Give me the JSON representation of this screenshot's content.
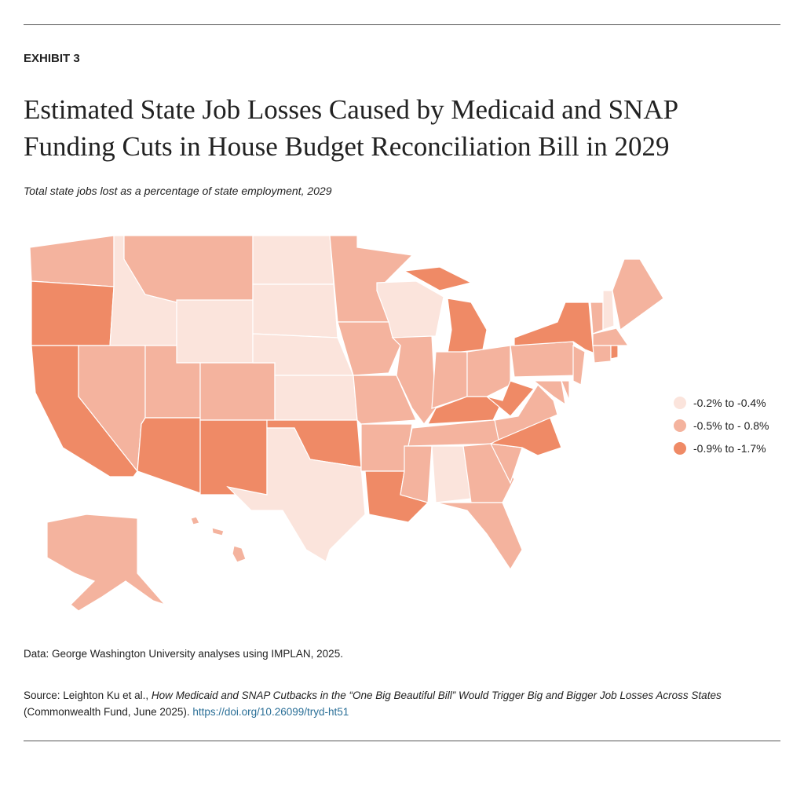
{
  "header": {
    "label": "EXHIBIT 3",
    "title": [
      "Estimated State Job Losses Caused by Medicaid and SNAP",
      "Funding Cuts in House Budget Reconciliation Bill in 2029"
    ],
    "subtitle": "Total state jobs lost as a percentage of state employment, 2029"
  },
  "map": {
    "legend": [
      {
        "label": "-0.2% to -0.4%",
        "color": "#fbe4dc"
      },
      {
        "label": "-0.5% to - 0.8%",
        "color": "#f4b39e"
      },
      {
        "label": "-0.9% to -1.7%",
        "color": "#ef8a66"
      }
    ],
    "state_classes": [
      1,
      2,
      2,
      0,
      1,
      1,
      0,
      1,
      2,
      1,
      2,
      0,
      0,
      0,
      0,
      2,
      0,
      1,
      1,
      1,
      1,
      2,
      0,
      1,
      2,
      1,
      1,
      2,
      1,
      1,
      0,
      1,
      1,
      1,
      2,
      1,
      2,
      1,
      1,
      1,
      1,
      2,
      1,
      0,
      1,
      1,
      1,
      2,
      1,
      1
    ]
  },
  "notes": {
    "data": "Data: George Washington University analyses using IMPLAN, 2025.",
    "source": {
      "prefix": "Source: Leighton Ku et al., ",
      "title": "How Medicaid and SNAP Cutbacks in the “One Big Beautiful Bill” Would Trigger Big and Bigger Job Losses Across States",
      "suffix": " (Commonwealth Fund, June 2025). ",
      "link": "https://doi.org/10.26099/tryd-ht51"
    }
  }
}
